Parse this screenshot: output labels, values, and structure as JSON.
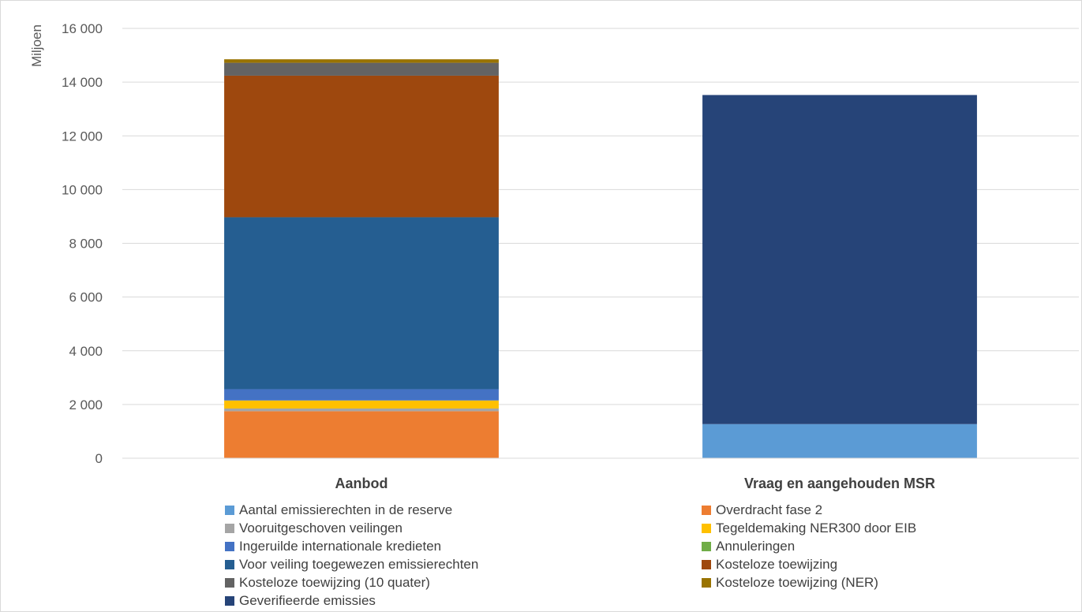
{
  "chart_data": {
    "type": "bar",
    "stacked": true,
    "ylabel": "Miljoen",
    "ylim": [
      0,
      16000
    ],
    "yticks": [
      0,
      2000,
      4000,
      6000,
      8000,
      10000,
      12000,
      14000,
      16000
    ],
    "ytick_labels": [
      "0",
      "2 000",
      "4 000",
      "6 000",
      "8 000",
      "10 000",
      "12 000",
      "14 000",
      "16 000"
    ],
    "grid": true,
    "legend_position": "bottom",
    "categories": [
      "Aanbod",
      "Vraag en aangehouden MSR"
    ],
    "series": [
      {
        "name": "Aantal emissierechten in de reserve",
        "color": "#5b9bd5",
        "values": [
          0,
          1270
        ]
      },
      {
        "name": "Overdracht fase 2",
        "color": "#ed7d31",
        "values": [
          1750,
          0
        ]
      },
      {
        "name": "Vooruitgeschoven veilingen",
        "color": "#a5a5a5",
        "values": [
          100,
          0
        ]
      },
      {
        "name": "Tegeldemaking NER300 door EIB",
        "color": "#ffc000",
        "values": [
          300,
          0
        ]
      },
      {
        "name": "Ingeruilde internationale kredieten",
        "color": "#4472c4",
        "values": [
          420,
          0
        ]
      },
      {
        "name": "Annuleringen",
        "color": "#70ad47",
        "values": [
          0,
          0
        ]
      },
      {
        "name": "Voor veiling toegewezen emissierechten",
        "color": "#255e91",
        "values": [
          6400,
          0
        ]
      },
      {
        "name": "Kosteloze toewijzing",
        "color": "#9e480e",
        "values": [
          5270,
          0
        ]
      },
      {
        "name": "Kosteloze toewijzing (10 quater)",
        "color": "#636363",
        "values": [
          480,
          0
        ]
      },
      {
        "name": "Kosteloze toewijzing (NER)",
        "color": "#997300",
        "values": [
          130,
          0
        ]
      },
      {
        "name": "Geverifieerde emissies",
        "color": "#264478",
        "values": [
          0,
          12250
        ]
      }
    ]
  }
}
